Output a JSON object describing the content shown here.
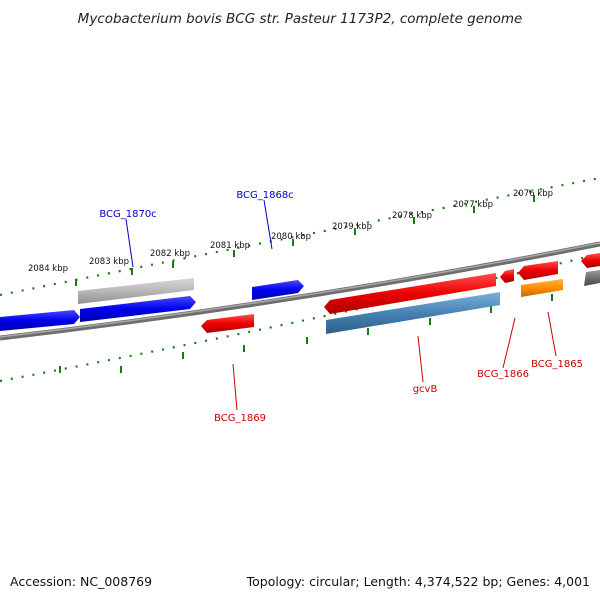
{
  "title": "Mycobacterium bovis BCG str. Pasteur 1173P2, complete genome",
  "footer": {
    "accession": "Accession: NC_008769",
    "summary": "Topology: circular; Length: 4,374,522 bp; Genes: 4,001"
  },
  "ticks": [
    "2084 kbp",
    "2083 kbp",
    "2082 kbp",
    "2081 kbp",
    "2080 kbp",
    "2079 kbp",
    "2078 kbp",
    "2077 kbp",
    "2076 kbp"
  ],
  "gene_labels": {
    "bcg_1870c": "BCG_1870c",
    "bcg_1868c": "BCG_1868c",
    "bcg_1869": "BCG_1869",
    "gcvb": "gcvB",
    "bcg_1866": "BCG_1866",
    "bcg_1865": "BCG_1865"
  },
  "colors": {
    "forward_gene": "#0000ee",
    "reverse_gene": "#ee0000",
    "rna_gene": "#4682b4",
    "other_gene": "#ff8c00",
    "pseudo_gene": "#b0b0b0",
    "backbone": "#808080",
    "tick": "#1a7a1a"
  }
}
